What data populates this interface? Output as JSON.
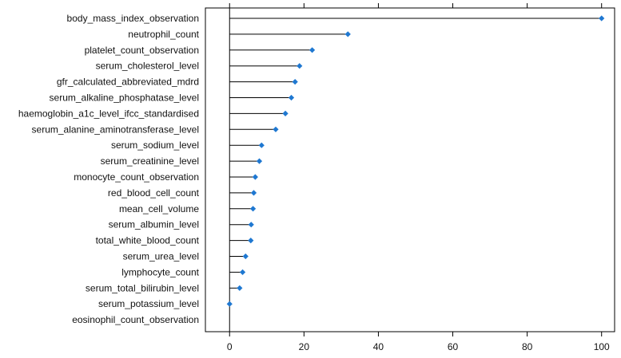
{
  "chart_data": {
    "type": "lollipop",
    "orientation": "horizontal",
    "categories": [
      "body_mass_index_observation",
      "neutrophil_count",
      "platelet_count_observation",
      "serum_cholesterol_level",
      "gfr_calculated_abbreviated_mdrd",
      "serum_alkaline_phosphatase_level",
      "haemoglobin_a1c_level_ifcc_standardised",
      "serum_alanine_aminotransferase_level",
      "serum_sodium_level",
      "serum_creatinine_level",
      "monocyte_count_observation",
      "red_blood_cell_count",
      "mean_cell_volume",
      "serum_albumin_level",
      "total_white_blood_count",
      "serum_urea_level",
      "lymphocyte_count",
      "serum_total_bilirubin_level",
      "serum_potassium_level",
      "eosinophil_count_observation"
    ],
    "values": [
      100,
      31.8,
      22.2,
      18.8,
      17.6,
      16.6,
      15.0,
      12.4,
      8.6,
      8.0,
      6.9,
      6.5,
      6.3,
      5.8,
      5.7,
      4.3,
      3.5,
      2.7,
      0,
      null
    ],
    "xlim": [
      -6.5,
      103.5
    ],
    "xticks": [
      0,
      20,
      40,
      60,
      80,
      100
    ],
    "title": "",
    "xlabel": "",
    "ylabel": "",
    "colors": {
      "point": "#1f78d1",
      "stem": "#000000",
      "axis": "#000000"
    },
    "grid": false
  }
}
